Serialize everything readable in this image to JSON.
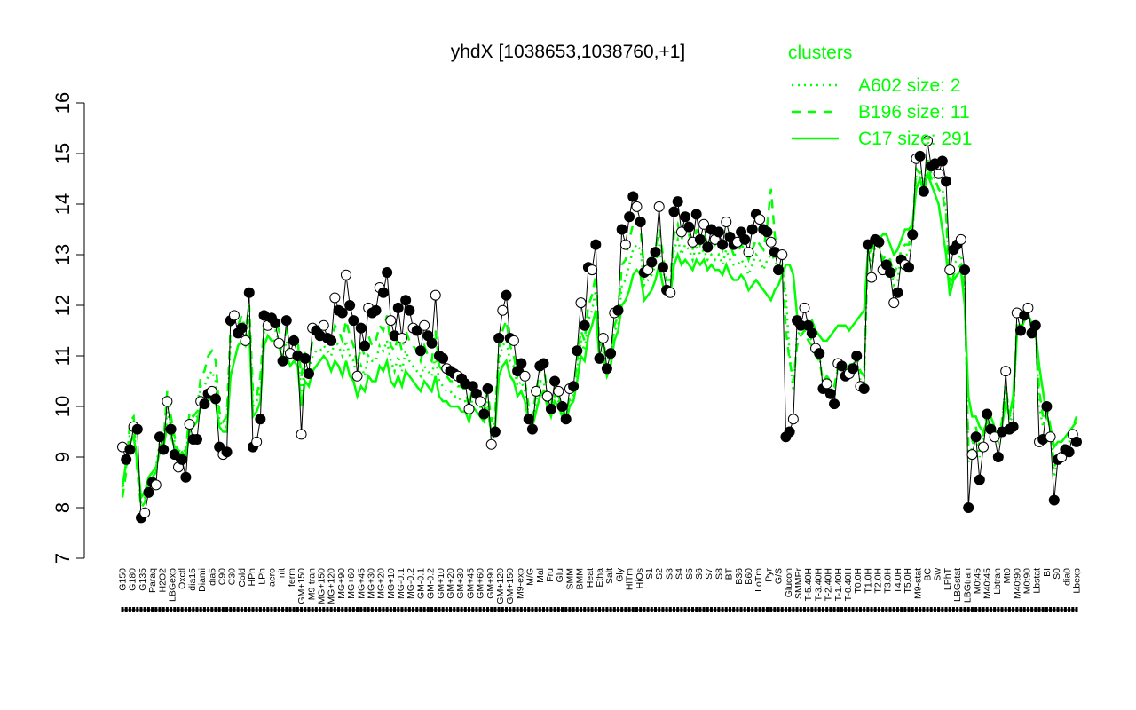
{
  "chart_data": {
    "type": "line",
    "title": "yhdX [1038653,1038760,+1]",
    "xlabel": "",
    "ylabel": "",
    "ylim": [
      7,
      16
    ],
    "yticks": [
      7,
      8,
      9,
      10,
      11,
      12,
      13,
      14,
      15,
      16
    ],
    "grid": false,
    "legend_placement": "top-right",
    "legend": {
      "title": "clusters",
      "color": "#00ff00",
      "entries": [
        {
          "label": "A602 size: 2",
          "style": "dotted"
        },
        {
          "label": "B196 size: 11",
          "style": "dashed"
        },
        {
          "label": "C17 size: 291",
          "style": "solid"
        }
      ]
    },
    "x_tick_labels": [
      "G150",
      "G180",
      "G135",
      "Paraq",
      "H2O2",
      "LBGexp",
      "Oxctl",
      "dia15",
      "Diami",
      "dia5",
      "C90",
      "C30",
      "Cold",
      "HPh",
      "LPh",
      "aero",
      "nit",
      "ferm",
      "GM+150",
      "M9-tran",
      "MG+150",
      "MG+120",
      "MG+90",
      "MG+60",
      "MG+45",
      "MG+30",
      "MG+20",
      "MG+10",
      "MG-0.1",
      "MG-0.2",
      "GM-0.1",
      "GM-0.2",
      "GM+10",
      "GM+20",
      "GM+30",
      "GM+45",
      "GM+60",
      "GM+90",
      "GM+120",
      "GM+150",
      "M9-exp",
      "M/G",
      "Mal",
      "Fru",
      "Glu",
      "SMM",
      "BMM",
      "Heat",
      "Etha",
      "Salt",
      "Gly",
      "HiTm",
      "HiOs",
      "S1",
      "S2",
      "S3",
      "S4",
      "S5",
      "S6",
      "S7",
      "S8",
      "BT",
      "B36",
      "B60",
      "LoTm",
      "Pyr",
      "G/S",
      "Glucon",
      "SMMPr",
      "T-5.40H",
      "T-3.40H",
      "T-2.40H",
      "T-1.40H",
      "T-0.40H",
      "T0.0H",
      "T1.0H",
      "T2.0H",
      "T3.0H",
      "T4.0H",
      "T5.0H",
      "M9-stat",
      "BC",
      "Sw",
      "LPhT",
      "LBGstat",
      "LBGtran",
      "M0t45",
      "M40t45",
      "Lbtran",
      "Mt0",
      "M40t90",
      "M0t90",
      "Lbstat",
      "BI",
      "S0",
      "dia0",
      "Lbexp"
    ],
    "series": [
      {
        "name": "",
        "color": "#000000",
        "values": [
          9.2,
          8.95,
          9.15,
          9.6,
          9.55,
          7.8,
          7.9,
          8.3,
          8.5,
          8.45,
          9.4,
          9.15,
          10.1,
          9.55,
          9.05,
          8.8,
          8.95,
          8.6,
          9.65,
          9.35,
          9.35,
          10.1,
          10.05,
          10.25,
          10.3,
          10.15,
          9.2,
          9.05,
          9.1,
          11.7,
          11.8,
          11.45,
          11.55,
          11.3,
          12.25,
          9.2,
          9.3,
          9.75,
          11.8,
          11.6,
          11.75,
          11.65,
          11.25,
          10.9,
          11.7,
          11.05,
          11.3,
          11.0,
          9.45,
          10.95,
          10.65,
          11.55,
          11.5,
          11.4,
          11.6,
          11.35,
          11.3,
          12.15,
          11.9,
          11.85,
          12.6,
          12.0,
          11.7,
          10.6,
          11.55,
          11.2,
          11.95,
          11.85,
          11.9,
          12.35,
          12.25,
          12.65,
          11.7,
          11.4,
          11.95,
          11.35,
          12.1,
          11.9,
          11.55,
          11.5,
          11.1,
          11.6,
          11.4,
          11.25,
          12.2,
          11.0,
          10.95,
          10.75,
          10.7,
          10.65,
          10.6,
          10.55,
          10.45,
          9.95,
          10.4,
          10.25,
          10.1,
          9.85,
          10.35,
          9.25,
          9.5,
          11.35,
          11.9,
          12.2,
          11.35,
          11.3,
          10.7,
          10.85,
          10.6,
          9.75,
          9.55,
          10.3,
          10.8,
          10.85,
          10.2,
          9.95,
          10.5,
          10.3,
          10.0,
          9.75,
          10.35,
          10.4,
          11.1,
          12.05,
          11.6,
          12.75,
          12.7,
          13.2,
          10.95,
          11.35,
          10.75,
          11.05,
          11.85,
          11.9,
          13.5,
          13.2,
          13.75,
          14.15,
          13.95,
          13.65,
          12.65,
          12.7,
          12.85,
          13.05,
          13.95,
          12.75,
          12.3,
          12.25,
          13.85,
          14.05,
          13.45,
          13.75,
          13.55,
          13.25,
          13.8,
          13.3,
          13.6,
          13.15,
          13.5,
          13.3,
          13.45,
          13.2,
          13.65,
          13.35,
          13.2,
          13.25,
          13.45,
          13.3,
          13.05,
          13.5,
          13.8,
          13.7,
          13.5,
          13.45,
          13.25,
          13.05,
          12.7,
          13.0,
          9.4,
          9.5,
          9.75,
          11.7,
          11.6,
          11.95,
          11.6,
          11.45,
          11.15,
          11.05,
          10.35,
          10.45,
          10.25,
          10.05,
          10.85,
          10.8,
          10.6,
          10.65,
          10.75,
          11.0,
          10.4,
          10.35,
          13.2,
          12.55,
          13.3,
          13.25,
          12.7,
          12.8,
          12.65,
          12.05,
          12.25,
          12.9,
          12.8,
          12.75,
          13.4,
          14.9,
          14.95,
          14.25,
          15.25,
          14.75,
          14.8,
          14.6,
          14.85,
          14.45,
          12.7,
          13.1,
          13.2,
          13.3,
          12.7,
          8.0,
          9.05,
          9.4,
          8.55,
          9.2,
          9.85,
          9.55,
          9.4,
          9.0,
          9.5,
          10.7,
          9.55,
          9.6,
          11.85,
          11.5,
          11.8,
          11.95,
          11.45,
          11.6,
          9.3,
          9.35,
          10.0,
          9.4,
          8.15,
          8.95,
          9.0,
          9.15,
          9.1,
          9.45,
          9.3
        ]
      },
      {
        "name": "",
        "color": "#00ff00",
        "style": "solid",
        "values": [
          8.4,
          8.9,
          9.3,
          9.4,
          8.9,
          8.2,
          8.3,
          8.6,
          8.7,
          8.8,
          9.1,
          9.2,
          9.6,
          9.4,
          9.2,
          9.0,
          9.1,
          9.0,
          9.5,
          9.6,
          9.7,
          10.0,
          10.1,
          10.1,
          10.2,
          10.1,
          9.6,
          9.5,
          9.5,
          10.6,
          10.9,
          11.2,
          11.3,
          11.2,
          11.5,
          9.8,
          9.9,
          10.1,
          11.2,
          11.4,
          11.3,
          11.3,
          11.2,
          10.9,
          11.0,
          10.8,
          10.9,
          10.8,
          10.0,
          10.5,
          10.4,
          10.7,
          10.8,
          10.9,
          11.0,
          10.9,
          10.7,
          10.9,
          10.8,
          10.6,
          10.9,
          10.6,
          10.5,
          10.2,
          10.4,
          10.3,
          10.6,
          10.5,
          10.5,
          10.8,
          10.7,
          10.9,
          10.5,
          10.4,
          10.6,
          10.4,
          10.7,
          10.6,
          10.5,
          10.4,
          10.3,
          10.5,
          10.4,
          10.3,
          10.6,
          10.2,
          10.1,
          10.1,
          10.0,
          10.0,
          10.0,
          9.9,
          9.9,
          9.7,
          10.0,
          9.9,
          9.8,
          9.7,
          9.9,
          9.5,
          9.6,
          10.6,
          10.8,
          10.9,
          10.6,
          10.5,
          10.2,
          10.3,
          10.1,
          9.7,
          9.6,
          9.9,
          10.2,
          10.3,
          10.0,
          9.8,
          10.1,
          10.0,
          9.8,
          9.7,
          10.0,
          10.1,
          10.5,
          11.0,
          10.9,
          11.4,
          11.6,
          11.9,
          10.9,
          11.0,
          10.6,
          10.8,
          11.3,
          11.5,
          12.0,
          12.1,
          12.3,
          12.6,
          12.7,
          12.6,
          12.1,
          12.2,
          12.3,
          12.5,
          12.8,
          12.4,
          12.2,
          12.2,
          12.8,
          13.0,
          12.8,
          12.9,
          12.8,
          12.7,
          12.9,
          12.8,
          12.9,
          12.7,
          12.8,
          12.7,
          12.7,
          12.6,
          12.8,
          12.6,
          12.5,
          12.5,
          12.6,
          12.5,
          12.3,
          12.4,
          12.5,
          12.4,
          12.3,
          12.2,
          12.1,
          12.3,
          12.4,
          12.6,
          12.8,
          12.8,
          12.6,
          11.8,
          11.6,
          11.6,
          11.6,
          11.7,
          11.5,
          11.4,
          11.3,
          11.3,
          11.4,
          11.5,
          11.6,
          11.6,
          11.6,
          11.5,
          11.6,
          11.7,
          11.8,
          11.9,
          13.0,
          13.1,
          13.2,
          13.3,
          13.4,
          13.4,
          13.2,
          13.0,
          13.1,
          13.3,
          13.5,
          13.5,
          13.6,
          14.3,
          14.5,
          14.2,
          14.6,
          14.4,
          14.2,
          14.0,
          13.5,
          13.0,
          12.2,
          12.5,
          12.6,
          12.7,
          12.0,
          10.2,
          9.8,
          9.8,
          9.6,
          9.5,
          9.7,
          9.6,
          9.5,
          9.5,
          9.6,
          10.1,
          9.8,
          10.2,
          11.4,
          11.5,
          11.7,
          11.8,
          11.6,
          11.5,
          10.8,
          10.3,
          9.8,
          9.6,
          9.2,
          9.3,
          9.3,
          9.4,
          9.5,
          9.6,
          9.7
        ]
      },
      {
        "name": "",
        "color": "#00ff00",
        "style": "dashed",
        "values": [
          8.2,
          8.7,
          9.7,
          9.8,
          8.7,
          8.0,
          8.1,
          8.5,
          8.6,
          8.7,
          9.2,
          9.3,
          10.3,
          9.8,
          9.4,
          9.1,
          9.2,
          9.1,
          9.9,
          9.8,
          9.9,
          10.6,
          10.7,
          11.0,
          11.1,
          10.9,
          9.9,
          9.7,
          9.8,
          11.6,
          11.7,
          11.6,
          11.8,
          11.5,
          12.0,
          10.3,
          10.2,
          10.6,
          11.6,
          11.8,
          11.7,
          11.7,
          11.5,
          11.2,
          11.5,
          11.3,
          11.4,
          11.3,
          10.6,
          11.1,
          10.9,
          11.3,
          11.4,
          11.4,
          11.5,
          11.4,
          11.3,
          11.6,
          11.5,
          11.3,
          11.7,
          11.4,
          11.2,
          10.8,
          11.2,
          11.0,
          11.4,
          11.2,
          11.3,
          11.6,
          11.5,
          11.8,
          11.2,
          11.1,
          11.4,
          11.1,
          11.5,
          11.3,
          11.2,
          11.1,
          10.9,
          11.2,
          11.0,
          10.9,
          11.5,
          10.8,
          10.7,
          10.6,
          10.5,
          10.5,
          10.4,
          10.4,
          10.3,
          10.0,
          10.4,
          10.3,
          10.2,
          10.0,
          10.3,
          9.7,
          9.9,
          11.1,
          11.5,
          11.7,
          11.2,
          11.0,
          10.6,
          10.8,
          10.5,
          10.0,
          9.8,
          10.3,
          10.7,
          10.8,
          10.3,
          10.0,
          10.4,
          10.2,
          10.0,
          9.8,
          10.2,
          10.3,
          10.9,
          11.5,
          11.3,
          12.0,
          12.2,
          12.6,
          11.2,
          11.3,
          10.9,
          11.1,
          11.6,
          11.8,
          12.8,
          12.9,
          13.3,
          13.6,
          13.7,
          13.5,
          12.7,
          12.8,
          12.9,
          13.1,
          13.5,
          13.0,
          12.5,
          12.5,
          13.4,
          13.6,
          13.3,
          13.5,
          13.4,
          13.1,
          13.5,
          13.2,
          13.4,
          13.1,
          13.3,
          13.2,
          13.3,
          13.1,
          13.4,
          13.2,
          13.0,
          13.0,
          13.2,
          13.1,
          12.9,
          13.1,
          13.3,
          13.2,
          13.1,
          13.6,
          14.3,
          13.4,
          12.9,
          13.0,
          11.5,
          10.9,
          10.5,
          11.2,
          11.4,
          11.5,
          11.3,
          11.2,
          11.0,
          10.9,
          10.5,
          10.6,
          10.5,
          10.4,
          10.8,
          10.8,
          10.7,
          10.8,
          10.9,
          11.0,
          10.7,
          10.6,
          13.0,
          12.8,
          13.2,
          13.2,
          12.9,
          13.0,
          12.9,
          12.6,
          12.8,
          13.1,
          13.2,
          13.2,
          13.5,
          14.7,
          14.6,
          14.4,
          14.8,
          14.5,
          14.5,
          14.3,
          14.2,
          13.8,
          12.2,
          12.6,
          12.7,
          12.8,
          12.3,
          9.2,
          9.3,
          9.6,
          9.2,
          9.4,
          9.9,
          9.8,
          9.6,
          9.4,
          9.7,
          10.4,
          9.8,
          9.9,
          11.6,
          11.6,
          11.8,
          11.9,
          11.6,
          11.6,
          10.3,
          9.8,
          10.0,
          9.6,
          8.8,
          9.0,
          9.1,
          9.3,
          9.4,
          9.6,
          9.8
        ]
      },
      {
        "name": "",
        "color": "#00ff00",
        "style": "dotted",
        "values": [
          8.3,
          8.8,
          9.5,
          9.6,
          8.8,
          8.1,
          8.2,
          8.5,
          8.7,
          8.8,
          9.3,
          9.2,
          9.9,
          9.6,
          9.3,
          9.0,
          9.1,
          9.0,
          9.7,
          9.7,
          9.8,
          10.4,
          10.4,
          10.6,
          10.7,
          10.5,
          9.7,
          9.6,
          9.6,
          11.3,
          11.4,
          11.5,
          11.6,
          11.4,
          11.8,
          10.0,
          10.1,
          10.3,
          11.5,
          11.6,
          11.5,
          11.5,
          11.3,
          11.0,
          11.3,
          11.0,
          11.1,
          11.0,
          10.3,
          10.8,
          10.6,
          11.0,
          11.1,
          11.1,
          11.2,
          11.1,
          11.0,
          11.3,
          11.2,
          11.0,
          11.3,
          11.0,
          10.9,
          10.5,
          10.8,
          10.6,
          11.0,
          10.9,
          10.9,
          11.2,
          11.1,
          11.3,
          10.9,
          10.7,
          11.0,
          10.7,
          11.1,
          10.9,
          10.8,
          10.7,
          10.6,
          10.8,
          10.7,
          10.6,
          11.0,
          10.5,
          10.4,
          10.3,
          10.3,
          10.2,
          10.2,
          10.1,
          10.1,
          9.8,
          10.2,
          10.1,
          10.0,
          9.8,
          10.1,
          9.4,
          9.7,
          10.9,
          11.2,
          11.3,
          10.9,
          10.8,
          10.4,
          10.5,
          10.3,
          9.8,
          9.7,
          10.1,
          10.5,
          10.5,
          10.1,
          9.9,
          10.2,
          10.1,
          9.9,
          9.7,
          10.1,
          10.2,
          10.7,
          11.3,
          11.1,
          11.7,
          11.9,
          12.3,
          11.0,
          11.2,
          10.7,
          10.9,
          11.5,
          11.6,
          12.4,
          12.5,
          12.8,
          13.1,
          13.2,
          13.1,
          12.4,
          12.5,
          12.6,
          12.8,
          13.2,
          12.7,
          12.4,
          12.3,
          13.1,
          13.3,
          13.0,
          13.2,
          13.1,
          12.9,
          13.2,
          13.0,
          13.1,
          12.9,
          13.0,
          12.9,
          13.0,
          12.8,
          13.1,
          12.9,
          12.8,
          12.8,
          12.9,
          12.8,
          12.6,
          12.8,
          13.0,
          12.9,
          12.7,
          12.9,
          13.0,
          12.9,
          12.7,
          12.8,
          12.2,
          11.0,
          10.3,
          11.4,
          11.5,
          11.6,
          11.4,
          11.3,
          11.1,
          11.0,
          10.4,
          10.5,
          10.4,
          10.3,
          10.8,
          10.8,
          10.6,
          10.7,
          10.8,
          11.0,
          10.5,
          10.4,
          13.1,
          12.7,
          13.2,
          13.2,
          12.8,
          12.9,
          12.8,
          12.4,
          12.5,
          13.0,
          13.0,
          13.0,
          13.4,
          14.6,
          14.7,
          14.3,
          14.9,
          14.6,
          14.5,
          14.3,
          14.3,
          13.9,
          12.4,
          12.8,
          12.9,
          13.0,
          12.5,
          8.9,
          9.2,
          9.5,
          9.0,
          9.3,
          9.8,
          9.6,
          9.5,
          9.3,
          9.6,
          10.5,
          9.7,
          9.8,
          11.6,
          11.5,
          11.7,
          11.9,
          11.5,
          11.6,
          10.0,
          9.6,
          9.9,
          9.5,
          8.6,
          9.0,
          9.1,
          9.2,
          9.3,
          9.5,
          9.5
        ]
      }
    ]
  }
}
